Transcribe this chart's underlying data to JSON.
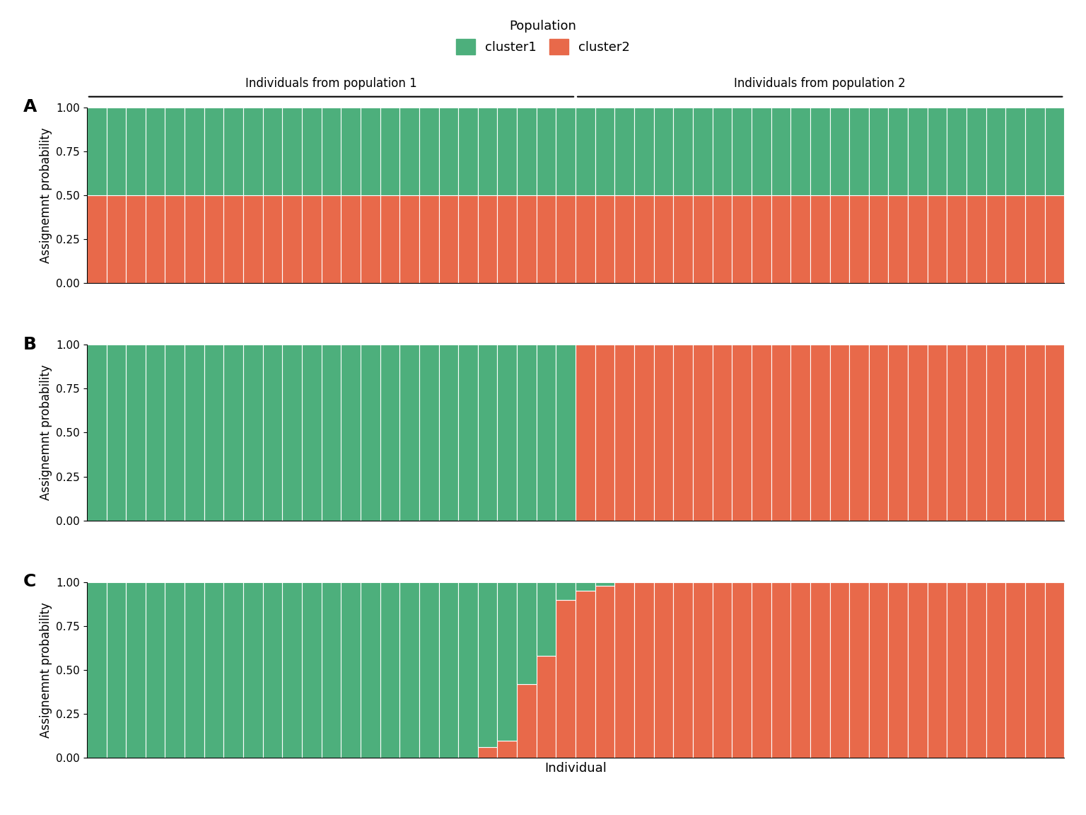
{
  "n_individuals": 50,
  "n_pop1": 25,
  "n_pop2": 25,
  "color_cluster1": "#4daf7c",
  "color_cluster2": "#e8694a",
  "panel_labels": [
    "A",
    "B",
    "C"
  ],
  "ylabel": "Assignemnt probability",
  "xlabel": "Individual",
  "legend_title": "Population",
  "legend_labels": [
    "cluster1",
    "cluster2"
  ],
  "pop1_label": "Individuals from population 1",
  "pop2_label": "Individuals from population 2",
  "yticks": [
    0.0,
    0.25,
    0.5,
    0.75,
    1.0
  ],
  "panel_A": {
    "cluster1": [
      0.5,
      0.5,
      0.5,
      0.5,
      0.5,
      0.5,
      0.5,
      0.5,
      0.5,
      0.5,
      0.5,
      0.5,
      0.5,
      0.5,
      0.5,
      0.5,
      0.5,
      0.5,
      0.5,
      0.5,
      0.5,
      0.5,
      0.5,
      0.5,
      0.5,
      0.5,
      0.5,
      0.5,
      0.5,
      0.5,
      0.5,
      0.5,
      0.5,
      0.5,
      0.5,
      0.5,
      0.5,
      0.5,
      0.5,
      0.5,
      0.5,
      0.5,
      0.5,
      0.5,
      0.5,
      0.5,
      0.5,
      0.5,
      0.5,
      0.5
    ]
  },
  "panel_B": {
    "cluster1": [
      1.0,
      1.0,
      1.0,
      1.0,
      1.0,
      1.0,
      1.0,
      1.0,
      1.0,
      1.0,
      1.0,
      1.0,
      1.0,
      1.0,
      1.0,
      1.0,
      1.0,
      1.0,
      1.0,
      1.0,
      1.0,
      1.0,
      1.0,
      1.0,
      1.0,
      0.0,
      0.0,
      0.0,
      0.0,
      0.0,
      0.0,
      0.0,
      0.0,
      0.0,
      0.0,
      0.0,
      0.0,
      0.0,
      0.0,
      0.0,
      0.0,
      0.0,
      0.0,
      0.0,
      0.0,
      0.0,
      0.0,
      0.0,
      0.0,
      0.0
    ]
  },
  "panel_C": {
    "cluster1": [
      1.0,
      1.0,
      1.0,
      1.0,
      1.0,
      1.0,
      1.0,
      1.0,
      1.0,
      1.0,
      1.0,
      1.0,
      1.0,
      1.0,
      1.0,
      1.0,
      1.0,
      1.0,
      1.0,
      1.0,
      0.94,
      0.9,
      0.58,
      0.42,
      0.1,
      0.05,
      0.02,
      0.0,
      0.0,
      0.0,
      0.0,
      0.0,
      0.0,
      0.0,
      0.0,
      0.0,
      0.0,
      0.0,
      0.0,
      0.0,
      0.0,
      0.0,
      0.0,
      0.0,
      0.0,
      0.0,
      0.0,
      0.0,
      0.0,
      0.0
    ]
  },
  "background_color": "#ffffff",
  "bar_edge_color": "#ffffff",
  "bar_linewidth": 0.8
}
